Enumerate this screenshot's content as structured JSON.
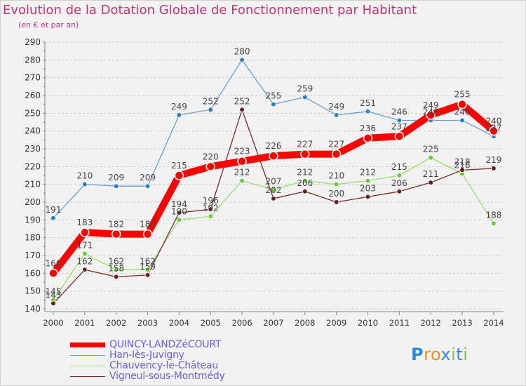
{
  "header": {
    "title": "Evolution de la Dotation Globale de Fonctionnement par Habitant",
    "subtitle": "(en € et par an)"
  },
  "chart_data": {
    "type": "line",
    "title": "Evolution de la Dotation Globale de Fonctionnement par Habitant",
    "subtitle": "(en € et par an)",
    "xlabel": "",
    "ylabel": "",
    "ylim": [
      140,
      290
    ],
    "y_ticks": [
      140,
      150,
      160,
      170,
      180,
      190,
      200,
      210,
      220,
      230,
      240,
      250,
      260,
      270,
      280,
      290
    ],
    "grid": "horizontal dashed",
    "categories": [
      "2000",
      "2001",
      "2002",
      "2003",
      "2004",
      "2005",
      "2006",
      "2007",
      "2008",
      "2009",
      "2010",
      "2011",
      "2012",
      "2013",
      "2014"
    ],
    "series": [
      {
        "name": "Han-lès-Juvigny",
        "color": "#6b9fd4",
        "marker_color": "#2e7fc2",
        "values": [
          191,
          210,
          209,
          209,
          249,
          252,
          280,
          255,
          259,
          249,
          251,
          246,
          246,
          246,
          237
        ],
        "labels": [
          "191",
          "210",
          "209",
          "209",
          "249",
          "252",
          "280",
          "255",
          "259",
          "249",
          "251",
          "246",
          "246",
          "246",
          "237"
        ]
      },
      {
        "name": "Chauvency-le-Château",
        "color": "#99e06b",
        "marker_color": "#66cc33",
        "values": [
          145,
          171,
          162,
          162,
          190,
          192,
          212,
          207,
          212,
          210,
          212,
          215,
          225,
          216,
          188
        ],
        "labels": [
          "145",
          "171",
          "162",
          "162",
          "190",
          "192",
          "212",
          "207",
          "212",
          "210",
          "212",
          "215",
          "225",
          "216",
          "188"
        ]
      },
      {
        "name": "Vigneul-sous-Montmédy",
        "color": "#7a2a2a",
        "marker_color": "#6a1e1e",
        "values": [
          143,
          162,
          158,
          159,
          194,
          196,
          252,
          202,
          206,
          200,
          203,
          206,
          211,
          218,
          219
        ],
        "labels": [
          "143",
          "162",
          "158",
          "159",
          "194",
          "196",
          "252",
          "202",
          "206",
          "200",
          "203",
          "206",
          "211",
          "218",
          "219"
        ]
      },
      {
        "name": "QUINCY-LANDZéCOURT",
        "color": "#ff0000",
        "marker_color": "#ff0000",
        "values": [
          160,
          183,
          182,
          182,
          215,
          220,
          223,
          226,
          227,
          227,
          236,
          237,
          249,
          255,
          240
        ],
        "labels": [
          "160",
          "183",
          "182",
          "182",
          "215",
          "220",
          "223",
          "226",
          "227",
          "227",
          "236",
          "237",
          "249",
          "255",
          "240"
        ]
      }
    ],
    "legend": {
      "placement": "bottom-left",
      "items": [
        {
          "name": "QUINCY-LANDZéCOURT",
          "color": "#ff0000"
        },
        {
          "name": "Han-lès-Juvigny",
          "color": "#6b9fd4"
        },
        {
          "name": "Chauvency-le-Château",
          "color": "#99e06b"
        },
        {
          "name": "Vigneul-sous-Montmédy",
          "color": "#7a2a2a"
        }
      ]
    }
  },
  "logo": {
    "text": "Proxiti"
  },
  "colors": {
    "title": "#c0347a",
    "legend_text": "#6f5ce0",
    "background": "#f2f2f2",
    "grid": "#cccccc",
    "axis_text": "#333333",
    "label_text": "#444444"
  }
}
